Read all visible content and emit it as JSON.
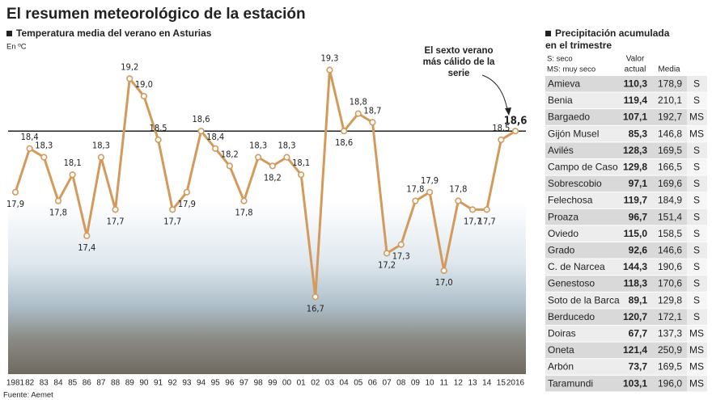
{
  "header": {
    "title": "El resumen meteorológico de la estación",
    "source": "Fuente: Aemet"
  },
  "chart_data": {
    "type": "line",
    "title": "Temperatura media del verano en Asturias",
    "unit": "En ºC",
    "annotation": [
      "El sexto verano",
      "más cálido de la",
      "serie"
    ],
    "categories": [
      "1981",
      "82",
      "83",
      "84",
      "85",
      "86",
      "87",
      "88",
      "89",
      "90",
      "91",
      "92",
      "93",
      "94",
      "95",
      "96",
      "97",
      "98",
      "99",
      "00",
      "01",
      "02",
      "03",
      "04",
      "05",
      "06",
      "07",
      "08",
      "09",
      "10",
      "11",
      "12",
      "13",
      "14",
      "15",
      "2016"
    ],
    "values": [
      17.9,
      18.4,
      18.3,
      17.8,
      18.1,
      17.4,
      18.3,
      17.7,
      19.2,
      19.0,
      18.5,
      17.7,
      17.9,
      18.6,
      18.4,
      18.2,
      17.8,
      18.3,
      18.2,
      18.3,
      18.1,
      16.7,
      19.3,
      18.6,
      18.8,
      18.7,
      17.2,
      17.3,
      17.8,
      17.9,
      17.0,
      17.8,
      17.7,
      17.7,
      18.5,
      18.6
    ],
    "value_labels": [
      "17,9",
      "18,4",
      "18,3",
      "17,8",
      "18,1",
      "17,4",
      "18,3",
      "17,7",
      "19,2",
      "19,0",
      "18,5",
      "17,7",
      "17,9",
      "18,6",
      "18,4",
      "18,2",
      "17,8",
      "18,3",
      "18,2",
      "18,3",
      "18,1",
      "16,7",
      "19,3",
      "18,6",
      "18,8",
      "18,7",
      "17,2",
      "17,3",
      "17,8",
      "17,9",
      "17,0",
      "17,8",
      "17,7",
      "17,7",
      "18,5",
      "18,6"
    ],
    "color": "#d49a5c",
    "ylim": [
      16.5,
      19.5
    ]
  },
  "precipitation": {
    "title": [
      "Precipitación acumulada",
      "en el trimestre"
    ],
    "legend": [
      "S: seco",
      "MS: muy seco"
    ],
    "value_header": [
      "Valor",
      "actual"
    ],
    "mean_header": "Media",
    "rows": [
      [
        "Amieva",
        "110,3",
        "178,9",
        "S"
      ],
      [
        "Benia",
        "119,4",
        "210,1",
        "S"
      ],
      [
        "Bargaedo",
        "107,1",
        "192,7",
        "MS"
      ],
      [
        "Gijón Musel",
        "85,3",
        "146,8",
        "MS"
      ],
      [
        "Avilés",
        "128,3",
        "169,5",
        "S"
      ],
      [
        "Campo de Caso",
        "129,8",
        "166,5",
        "S"
      ],
      [
        "Sobrescobio",
        "97,1",
        "169,6",
        "S"
      ],
      [
        "Felechosa",
        "119,7",
        "184,9",
        "S"
      ],
      [
        "Proaza",
        "96,7",
        "151,4",
        "S"
      ],
      [
        "Oviedo",
        "115,0",
        "158,5",
        "S"
      ],
      [
        "Grado",
        "92,6",
        "146,6",
        "S"
      ],
      [
        "C. de Narcea",
        "144,3",
        "190,6",
        "S"
      ],
      [
        "Genestoso",
        "118,3",
        "170,6",
        "S"
      ],
      [
        "Soto de la Barca",
        "89,1",
        "129,8",
        "S"
      ],
      [
        "Berducedo",
        "120,7",
        "172,1",
        "S"
      ],
      [
        "Doiras",
        "67,7",
        "137,3",
        "MS"
      ],
      [
        "Oneta",
        "121,4",
        "250,9",
        "MS"
      ],
      [
        "Arbón",
        "73,7",
        "169,5",
        "MS"
      ],
      [
        "Taramundi",
        "103,1",
        "196,0",
        "MS"
      ]
    ]
  }
}
